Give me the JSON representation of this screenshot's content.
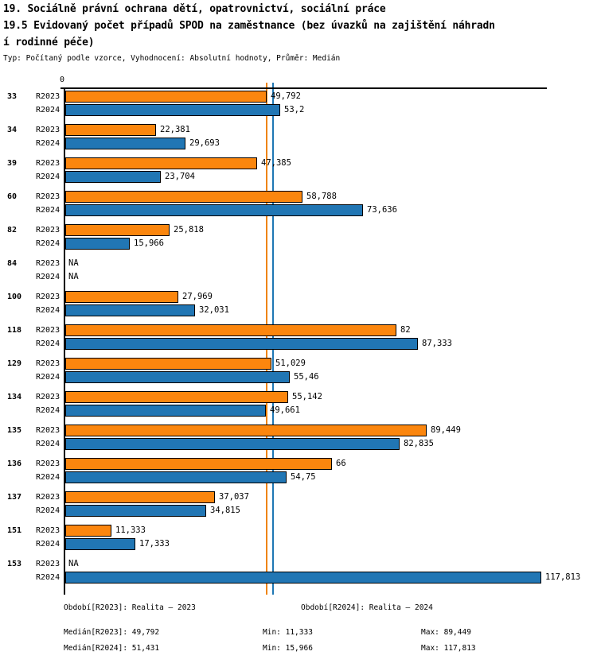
{
  "header": {
    "title_line1": "19. Sociálně právní ochrana dětí, opatrovnictví, sociální práce",
    "title_line2": "19.5 Evidovaný počet případů SPOD na zaměstnance (bez úvazků na zajištění náhradn",
    "title_line3": "í rodinné péče)",
    "meta": "Typ: Počítaný podle vzorce, Vyhodnocení: Absolutní hodnoty, Průměr: Medián"
  },
  "chart_data": {
    "type": "bar",
    "orientation": "horizontal",
    "title": "19.5 Evidovaný počet případů SPOD na zaměstnance (bez úvazků na zajištění náhradní rodinné péče)",
    "categories": [
      "33",
      "34",
      "39",
      "60",
      "82",
      "84",
      "100",
      "118",
      "129",
      "134",
      "135",
      "136",
      "137",
      "151",
      "153"
    ],
    "series": [
      {
        "name": "R2023",
        "color": "#FB860E",
        "values": [
          49.792,
          22.381,
          47.385,
          58.788,
          25.818,
          null,
          27.969,
          82,
          51.029,
          55.142,
          89.449,
          66,
          37.037,
          11.333,
          null
        ],
        "labels": [
          "49,792",
          "22,381",
          "47,385",
          "58,788",
          "25,818",
          "NA",
          "27,969",
          "82",
          "51,029",
          "55,142",
          "89,449",
          "66",
          "37,037",
          "11,333",
          "NA"
        ]
      },
      {
        "name": "R2024",
        "color": "#2176B4",
        "values": [
          53.2,
          29.693,
          23.704,
          73.636,
          15.966,
          null,
          32.031,
          87.333,
          55.46,
          49.661,
          82.835,
          54.75,
          34.815,
          17.333,
          117.813
        ],
        "labels": [
          "53,2",
          "29,693",
          "23,704",
          "73,636",
          "15,966",
          "NA",
          "32,031",
          "87,333",
          "55,46",
          "49,661",
          "82,835",
          "54,75",
          "34,815",
          "17,333",
          "117,813"
        ]
      }
    ],
    "x_axis": {
      "zero_label": "0",
      "min": 0,
      "max": 119.2,
      "grid": false
    },
    "medians": [
      {
        "name": "R2023",
        "value": 49.792,
        "label": "49,792",
        "color": "#EF840D"
      },
      {
        "name": "R2024",
        "value": 51.431,
        "label": "51,431",
        "color": "#1F77B4"
      }
    ],
    "legend_position": "none",
    "na_text": "NA"
  },
  "footer": {
    "period_r2023": "Období[R2023]: Realita – 2023",
    "period_r2024": "Období[R2024]: Realita – 2024",
    "median_r2023": "Medián[R2023]: 49,792",
    "median_r2024": "Medián[R2024]: 51,431",
    "min_r2023": "Min: 11,333",
    "min_r2024": "Min: 15,966",
    "max_r2023": "Max: 89,449",
    "max_r2024": "Max: 117,813"
  }
}
